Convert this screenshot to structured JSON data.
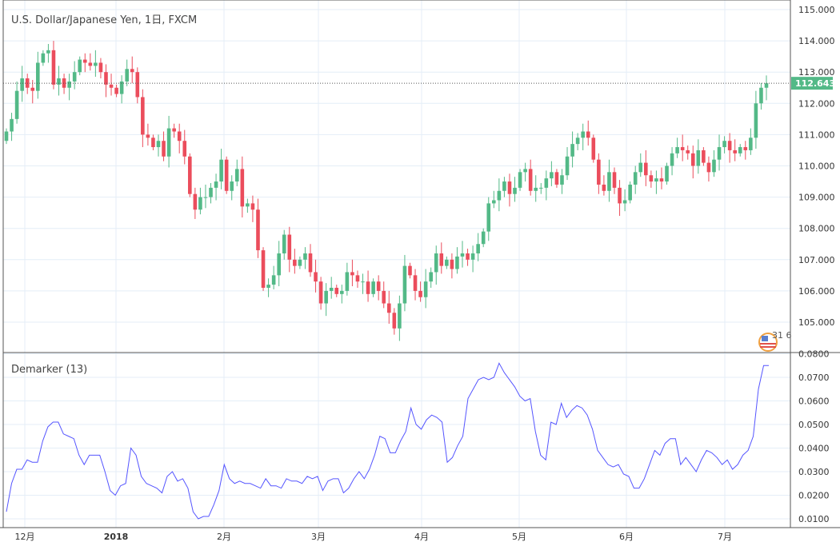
{
  "header": {
    "title": "U.S. Dollar/Japanese Yen, 1日, FXCM",
    "indicator": "Demarker (13)",
    "last_price": "112.643",
    "badge": "31 6"
  },
  "colors": {
    "up": "#53b987",
    "down": "#eb4d5c",
    "demarker": "#5555ff",
    "grid": "#e4eef7",
    "last": "#53b987"
  },
  "chart_data": [
    {
      "type": "candlestick",
      "title": "U.S. Dollar/Japanese Yen, 1日, FXCM",
      "ylim": [
        105,
        115
      ],
      "yticks": [
        "105.000",
        "106.000",
        "107.000",
        "108.000",
        "109.000",
        "110.000",
        "111.000",
        "112.000",
        "113.000",
        "114.000",
        "115.000"
      ],
      "xticks": [
        "12月",
        "2018",
        "2月",
        "3月",
        "4月",
        "5月",
        "6月",
        "7月"
      ],
      "close": [
        111.1,
        111.5,
        112.4,
        112.8,
        112.5,
        112.4,
        113.3,
        113.6,
        113.7,
        112.6,
        112.8,
        112.5,
        112.7,
        113.0,
        113.4,
        113.3,
        113.2,
        113.3,
        113.0,
        112.6,
        112.5,
        112.3,
        112.7,
        113.1,
        113.0,
        112.2,
        111.0,
        110.9,
        110.6,
        110.8,
        110.3,
        111.2,
        111.1,
        110.8,
        110.3,
        109.1,
        108.6,
        109.0,
        109.0,
        109.3,
        109.5,
        110.2,
        109.2,
        109.5,
        109.9,
        108.7,
        108.8,
        108.6,
        107.3,
        106.1,
        106.2,
        106.5,
        107.2,
        107.8,
        107.0,
        106.8,
        107.0,
        107.2,
        106.6,
        106.3,
        105.6,
        106.0,
        106.1,
        105.9,
        106.0,
        106.6,
        106.5,
        106.3,
        106.3,
        105.9,
        106.3,
        106.0,
        105.6,
        105.3,
        104.8,
        105.6,
        106.8,
        106.5,
        106.0,
        105.8,
        106.3,
        106.6,
        107.2,
        106.8,
        107.0,
        106.7,
        107.1,
        107.2,
        107.0,
        107.2,
        107.5,
        107.9,
        108.8,
        108.9,
        109.2,
        109.5,
        109.1,
        109.3,
        109.8,
        109.9,
        109.2,
        109.3,
        109.3,
        109.6,
        109.8,
        109.4,
        109.7,
        110.3,
        110.7,
        110.9,
        111.1,
        110.9,
        110.2,
        109.4,
        109.2,
        109.8,
        109.3,
        108.8,
        108.9,
        109.4,
        109.8,
        110.1,
        109.7,
        109.5,
        109.6,
        109.5,
        110.0,
        110.4,
        110.6,
        110.5,
        110.4,
        110.0,
        110.5,
        110.1,
        109.8,
        110.2,
        110.6,
        110.8,
        110.5,
        110.4,
        110.6,
        110.5,
        110.9,
        112.0,
        112.5,
        112.643
      ]
    },
    {
      "type": "line",
      "title": "Demarker (13)",
      "ylim": [
        0.005,
        0.08
      ],
      "yticks": [
        "0.0100",
        "0.0200",
        "0.0300",
        "0.0400",
        "0.0500",
        "0.0600",
        "0.0700",
        "0.0800"
      ],
      "values": [
        0.013,
        0.025,
        0.031,
        0.031,
        0.035,
        0.034,
        0.034,
        0.043,
        0.049,
        0.051,
        0.051,
        0.046,
        0.045,
        0.044,
        0.037,
        0.033,
        0.037,
        0.037,
        0.037,
        0.03,
        0.022,
        0.02,
        0.024,
        0.025,
        0.04,
        0.037,
        0.028,
        0.025,
        0.024,
        0.023,
        0.021,
        0.028,
        0.03,
        0.026,
        0.027,
        0.023,
        0.013,
        0.01,
        0.011,
        0.011,
        0.016,
        0.022,
        0.033,
        0.027,
        0.025,
        0.026,
        0.025,
        0.025,
        0.024,
        0.023,
        0.027,
        0.024,
        0.024,
        0.023,
        0.027,
        0.026,
        0.026,
        0.025,
        0.028,
        0.027,
        0.028,
        0.022,
        0.026,
        0.027,
        0.027,
        0.021,
        0.023,
        0.027,
        0.03,
        0.027,
        0.031,
        0.037,
        0.045,
        0.044,
        0.038,
        0.038,
        0.043,
        0.047,
        0.057,
        0.05,
        0.048,
        0.052,
        0.054,
        0.053,
        0.051,
        0.034,
        0.036,
        0.041,
        0.045,
        0.061,
        0.065,
        0.069,
        0.07,
        0.069,
        0.07,
        0.076,
        0.072,
        0.069,
        0.066,
        0.062,
        0.06,
        0.061,
        0.047,
        0.037,
        0.035,
        0.051,
        0.05,
        0.059,
        0.053,
        0.056,
        0.058,
        0.057,
        0.054,
        0.048,
        0.039,
        0.036,
        0.033,
        0.032,
        0.033,
        0.029,
        0.028,
        0.023,
        0.023,
        0.027,
        0.033,
        0.039,
        0.037,
        0.042,
        0.044,
        0.044,
        0.033,
        0.036,
        0.033,
        0.03,
        0.035,
        0.039,
        0.038,
        0.036,
        0.033,
        0.035,
        0.031,
        0.033,
        0.037,
        0.039,
        0.045,
        0.065,
        0.075,
        0.075
      ]
    }
  ]
}
